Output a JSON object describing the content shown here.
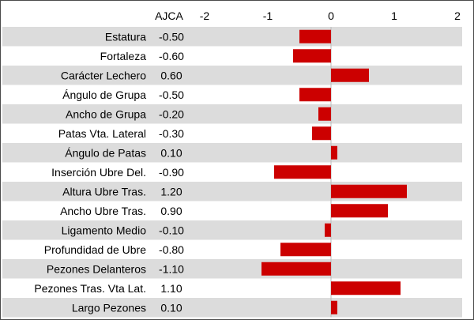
{
  "chart_data": {
    "type": "bar",
    "orientation": "horizontal",
    "value_column_header": "AJCA",
    "xlim": [
      -2,
      2
    ],
    "x_ticks": [
      "-2",
      "-1",
      "0",
      "1",
      "2"
    ],
    "grid": false,
    "bar_color": "#cc0000",
    "categories": [
      "Estatura",
      "Fortaleza",
      "Carácter Lechero",
      "Ángulo de Grupa",
      "Ancho de Grupa",
      "Patas Vta. Lateral",
      "Ángulo de Patas",
      "Inserción Ubre Del.",
      "Altura Ubre Tras.",
      "Ancho Ubre Tras.",
      "Ligamento Medio",
      "Profundidad de Ubre",
      "Pezones Delanteros",
      "Pezones Tras. Vta Lat.",
      "Largo Pezones"
    ],
    "values": [
      -0.5,
      -0.6,
      0.6,
      -0.5,
      -0.2,
      -0.3,
      0.1,
      -0.9,
      1.2,
      0.9,
      -0.1,
      -0.8,
      -1.1,
      1.1,
      0.1
    ],
    "value_labels": [
      "-0.50",
      "-0.60",
      "0.60",
      "-0.50",
      "-0.20",
      "-0.30",
      "0.10",
      "-0.90",
      "1.20",
      "0.90",
      "-0.10",
      "-0.80",
      "-1.10",
      "1.10",
      "0.10"
    ]
  }
}
